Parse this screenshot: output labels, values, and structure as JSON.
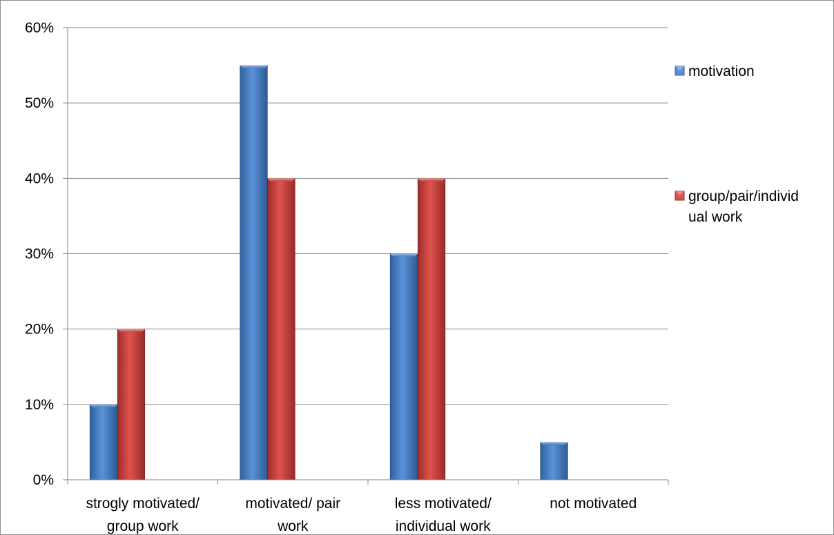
{
  "chart_data": {
    "type": "bar",
    "title": "",
    "xlabel": "",
    "ylabel": "",
    "ylim": [
      0,
      0.6
    ],
    "y_ticks": [
      0,
      0.1,
      0.2,
      0.3,
      0.4,
      0.5,
      0.6
    ],
    "y_tick_labels": [
      "0%",
      "10%",
      "20%",
      "30%",
      "40%",
      "50%",
      "60%"
    ],
    "grid": true,
    "legend_position": "right",
    "categories": [
      [
        "strogly motivated/",
        "group work"
      ],
      [
        "motivated/ pair",
        "work"
      ],
      [
        "less motivated/",
        "individual work"
      ],
      [
        "not motivated"
      ]
    ],
    "series": [
      {
        "name": "motivation",
        "legend_lines": [
          "motivation"
        ],
        "color": "#4f81bd",
        "values": [
          0.1,
          0.55,
          0.3,
          0.05
        ]
      },
      {
        "name": "group/pair/individual work",
        "legend_lines": [
          "group/pair/individ",
          "ual work"
        ],
        "color": "#c0504d",
        "values": [
          0.2,
          0.4,
          0.4,
          0
        ]
      }
    ]
  }
}
